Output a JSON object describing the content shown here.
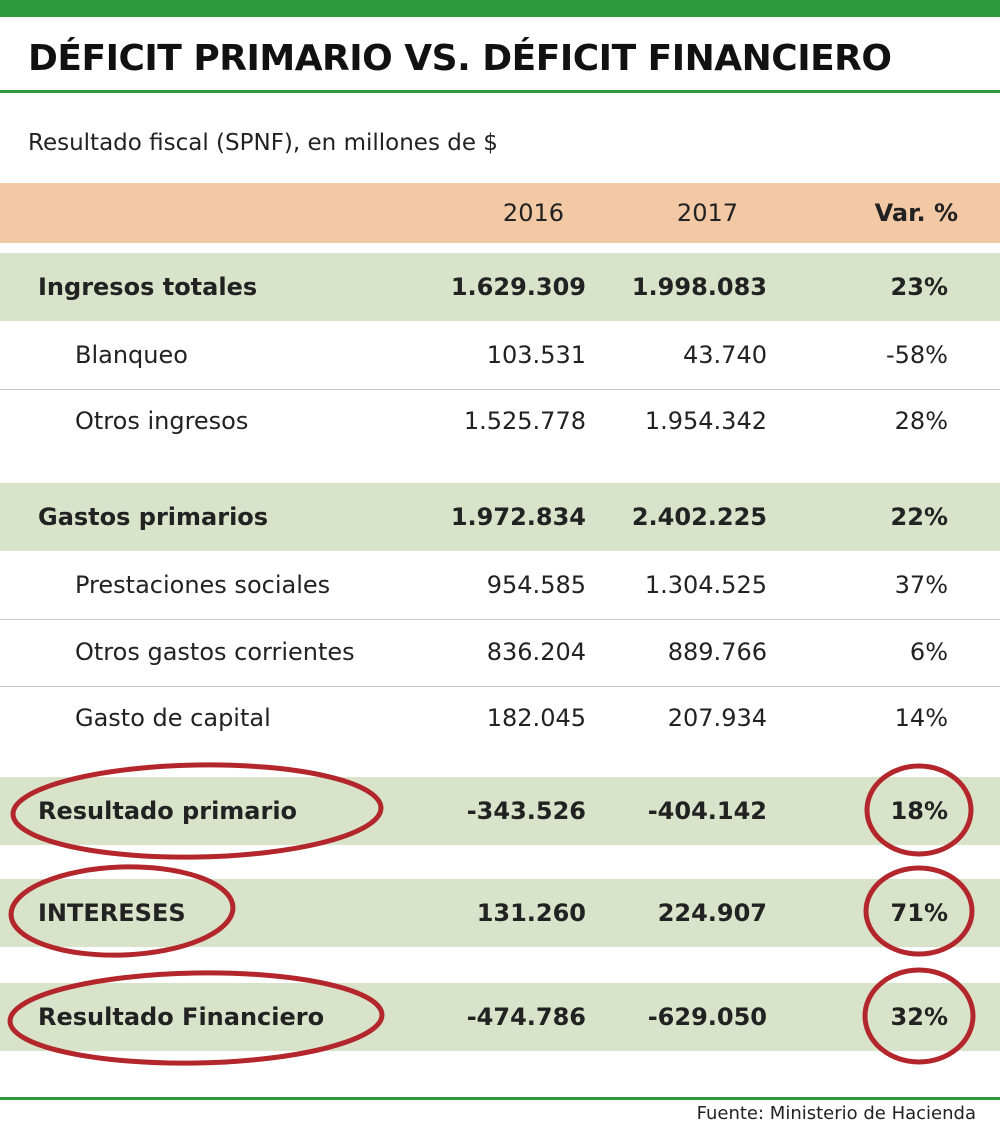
{
  "title": "DÉFICIT PRIMARIO VS. DÉFICIT FINANCIERO",
  "subtitle": "Resultado fiscal (SPNF), en millones de $",
  "source": "Fuente: Ministerio de Hacienda",
  "colors": {
    "accent_green": "#2e9a3c",
    "header_fill": "#f2c9a4",
    "highlight_fill": "#d8e3ca",
    "annotation_red": "#b3262b"
  },
  "chart_data": {
    "type": "table",
    "columns": [
      "",
      "2016",
      "2017",
      "Var. %"
    ],
    "rows": [
      {
        "label": "Ingresos totales",
        "v2016": "1.629.309",
        "v2017": "1.998.083",
        "var": "23%"
      },
      {
        "label": "Blanqueo",
        "v2016": "103.531",
        "v2017": "43.740",
        "var": "-58%"
      },
      {
        "label": "Otros ingresos",
        "v2016": "1.525.778",
        "v2017": "1.954.342",
        "var": "28%"
      },
      {
        "label": "Gastos primarios",
        "v2016": "1.972.834",
        "v2017": "2.402.225",
        "var": "22%"
      },
      {
        "label": "Prestaciones sociales",
        "v2016": "954.585",
        "v2017": "1.304.525",
        "var": "37%"
      },
      {
        "label": "Otros gastos corrientes",
        "v2016": "836.204",
        "v2017": "889.766",
        "var": "6%"
      },
      {
        "label": "Gasto de capital",
        "v2016": "182.045",
        "v2017": "207.934",
        "var": "14%"
      },
      {
        "label": "Resultado primario",
        "v2016": "-343.526",
        "v2017": "-404.142",
        "var": "18%"
      },
      {
        "label": "INTERESES",
        "v2016": "131.260",
        "v2017": "224.907",
        "var": "71%"
      },
      {
        "label": "Resultado Financiero",
        "v2016": "-474.786",
        "v2017": "-629.050",
        "var": "32%"
      }
    ],
    "circled_rows": [
      "Resultado primario",
      "INTERESES",
      "Resultado Financiero"
    ]
  }
}
